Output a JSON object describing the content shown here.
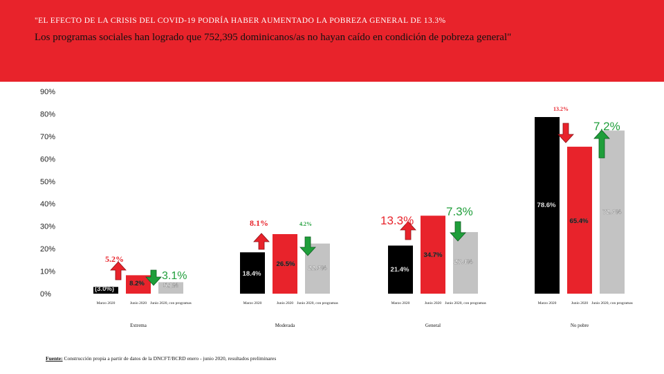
{
  "header": {
    "headline": "\"EL EFECTO DE LA CRISIS DEL COVID-19 PODRÍA HABER AUMENTADO LA POBREZA GENERAL DE 13.3%",
    "subline_pre": "Los programas sociales han logrado que ",
    "subline_num": "752,395",
    "subline_post": " dominicanos/as no hayan caído en condición de pobreza general\""
  },
  "source": {
    "label": "Fuente:",
    "text": " Construcción propia a partir de datos de la DNCFT/BCRD enero - junio 2020, resultados preliminares"
  },
  "colors": {
    "banner": "#e8232b",
    "marzo": "#000000",
    "junio": "#e8232b",
    "programas": "#c3c3c3",
    "arrow_up": "#e8232b",
    "arrow_down": "#1f9e3a"
  },
  "chart_data": {
    "type": "bar",
    "ylim": [
      0,
      90
    ],
    "yticks": [
      "0%",
      "10%",
      "20%",
      "30%",
      "40%",
      "50%",
      "60%",
      "70%",
      "80%",
      "90%"
    ],
    "groups": [
      "Extrema",
      "Moderada",
      "General",
      "No pobre"
    ],
    "series_labels": [
      [
        "Marzo 2020",
        "Junio 2020",
        "Junio 2020, con programas"
      ],
      [
        "Marzo 2020",
        "Junio 2020",
        "Junio 2020, con programas"
      ],
      [
        "Marzo 2020",
        "Junio 2020",
        "Junio 2020, con programas"
      ],
      [
        "Marzo 2020",
        "Junio 2020",
        "Junio 2020, con programas"
      ]
    ],
    "values": [
      [
        3.0,
        8.2,
        5.1
      ],
      [
        18.4,
        26.5,
        22.3
      ],
      [
        21.4,
        34.7,
        27.4
      ],
      [
        78.6,
        65.4,
        72.6
      ]
    ],
    "value_labels": [
      [
        "(3.0%)",
        "8.2%",
        "5.1%"
      ],
      [
        "18.4%",
        "26.5%",
        "22.3%"
      ],
      [
        "21.4%",
        "34.7%",
        "27.4%"
      ],
      [
        "78.6%",
        "65.4%",
        "72.6%"
      ]
    ],
    "annotations": [
      {
        "up": "5.2%",
        "down": "3.1%"
      },
      {
        "up": "8.1%",
        "down": "4.2%"
      },
      {
        "up": "13.3%",
        "down": "7.3%"
      },
      {
        "down_first": "13.2%",
        "up": "7.2%"
      }
    ]
  }
}
